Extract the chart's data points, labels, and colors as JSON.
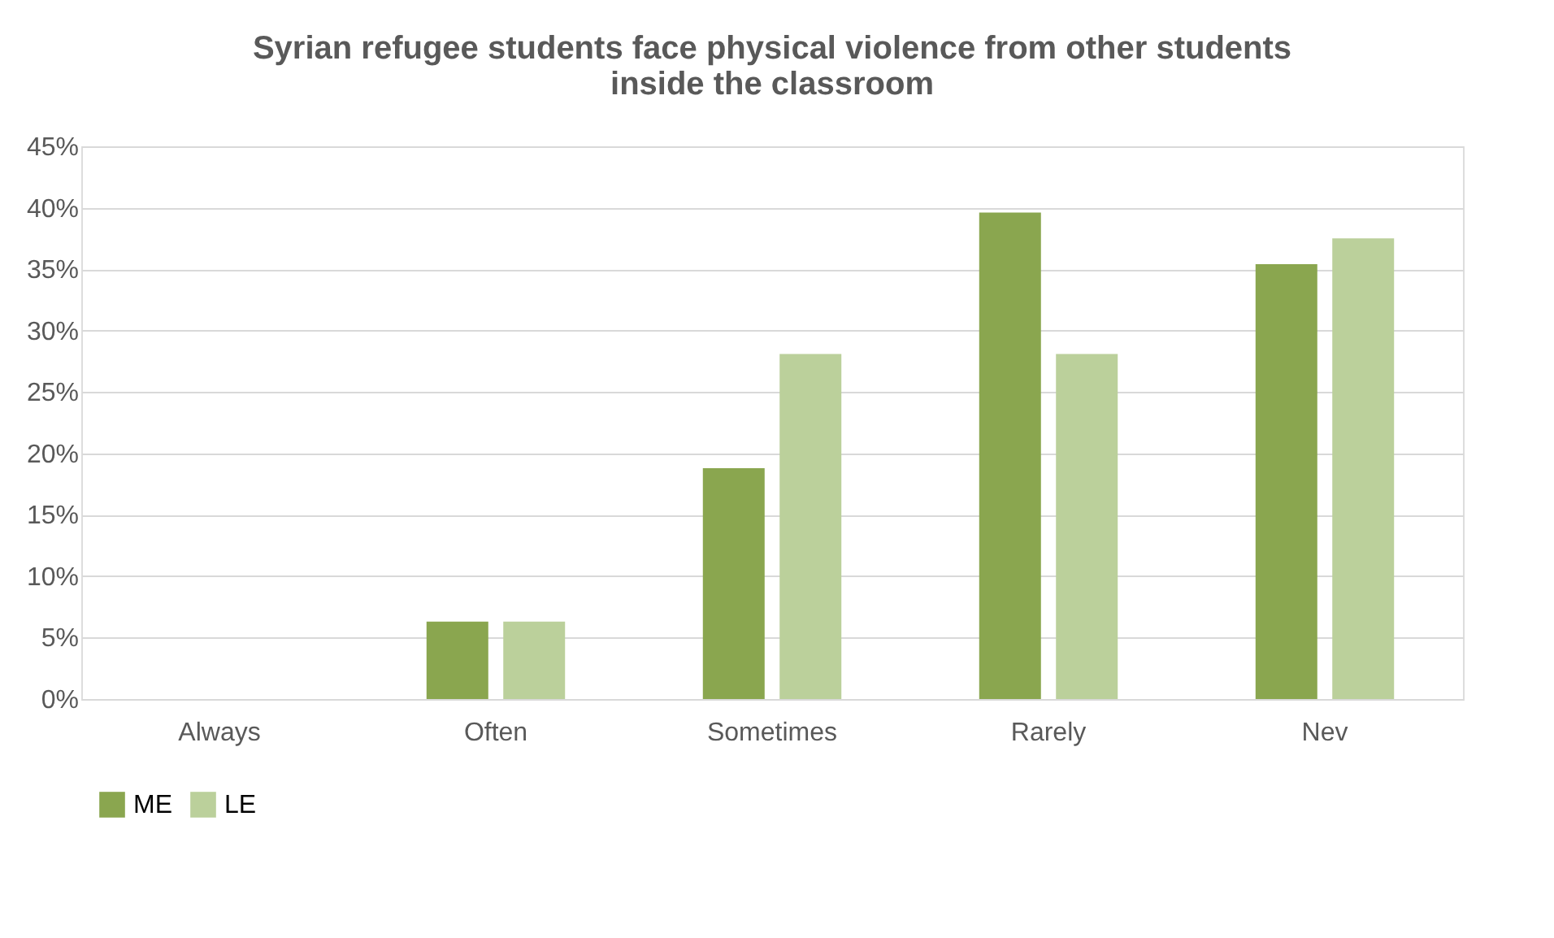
{
  "chart_data": {
    "type": "bar",
    "title": "Syrian refugee students face physical violence from other students\ninside the classroom",
    "categories": [
      "Always",
      "Often",
      "Sometimes",
      "Rarely",
      "Nev"
    ],
    "series": [
      {
        "name": "ME",
        "color": "#8aa64f",
        "values": [
          0,
          6.3,
          18.8,
          39.6,
          35.4
        ]
      },
      {
        "name": "LE",
        "color": "#bbd09b",
        "values": [
          0,
          6.3,
          28.1,
          28.1,
          37.5
        ]
      }
    ],
    "ylim": [
      0,
      45
    ],
    "yticks": [
      {
        "value": 0,
        "label": "0%"
      },
      {
        "value": 5,
        "label": "5%"
      },
      {
        "value": 10,
        "label": "10%"
      },
      {
        "value": 15,
        "label": "15%"
      },
      {
        "value": 20,
        "label": "20%"
      },
      {
        "value": 25,
        "label": "25%"
      },
      {
        "value": 30,
        "label": "30%"
      },
      {
        "value": 35,
        "label": "35%"
      },
      {
        "value": 40,
        "label": "40%"
      },
      {
        "value": 45,
        "label": "45%"
      }
    ],
    "grid": "y",
    "legend": "bottom"
  }
}
